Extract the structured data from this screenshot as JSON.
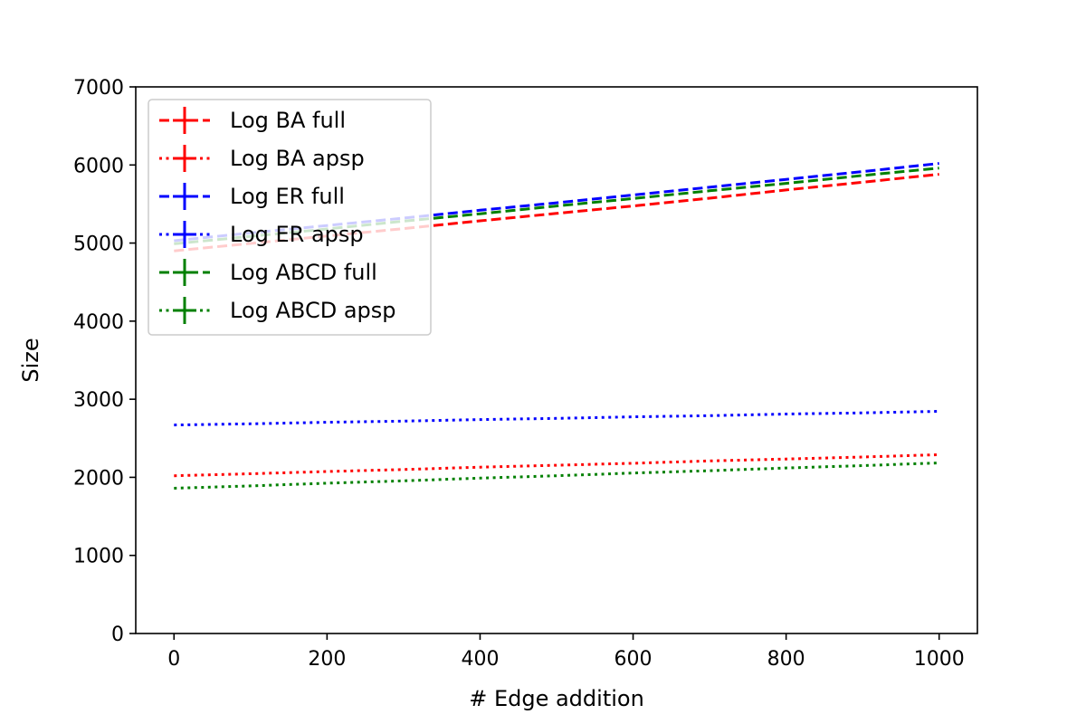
{
  "chart_data": {
    "type": "line",
    "title": "",
    "xlabel": "# Edge addition",
    "ylabel": "Size",
    "xlim": [
      -50,
      1050
    ],
    "ylim": [
      0,
      7000
    ],
    "xticks": [
      0,
      200,
      400,
      600,
      800,
      1000
    ],
    "yticks": [
      0,
      1000,
      2000,
      3000,
      4000,
      5000,
      6000,
      7000
    ],
    "grid": false,
    "legend_position": "top-left",
    "x": [
      0,
      100,
      200,
      300,
      400,
      500,
      600,
      700,
      800,
      900,
      1000
    ],
    "series": [
      {
        "name": "Log BA full",
        "color": "#ff0000",
        "linestyle": "dashed",
        "values": [
          4900,
          4995,
          5090,
          5185,
          5285,
          5380,
          5475,
          5575,
          5680,
          5780,
          5880
        ]
      },
      {
        "name": "Log BA apsp",
        "color": "#ff0000",
        "linestyle": "dotted",
        "values": [
          2020,
          2045,
          2075,
          2100,
          2130,
          2155,
          2180,
          2210,
          2235,
          2260,
          2290
        ]
      },
      {
        "name": "Log ER full",
        "color": "#0000ff",
        "linestyle": "dashed",
        "values": [
          5030,
          5130,
          5225,
          5320,
          5420,
          5515,
          5615,
          5715,
          5815,
          5915,
          6020
        ]
      },
      {
        "name": "Log ER apsp",
        "color": "#0000ff",
        "linestyle": "dotted",
        "values": [
          2670,
          2685,
          2705,
          2720,
          2740,
          2755,
          2775,
          2790,
          2810,
          2825,
          2845
        ]
      },
      {
        "name": "Log ABCD full",
        "color": "#008000",
        "linestyle": "dashed",
        "values": [
          4990,
          5085,
          5180,
          5280,
          5375,
          5475,
          5570,
          5670,
          5765,
          5865,
          5960
        ]
      },
      {
        "name": "Log ABCD apsp",
        "color": "#008000",
        "linestyle": "dotted",
        "values": [
          1860,
          1890,
          1925,
          1955,
          1990,
          2020,
          2055,
          2085,
          2120,
          2150,
          2185
        ]
      }
    ]
  }
}
